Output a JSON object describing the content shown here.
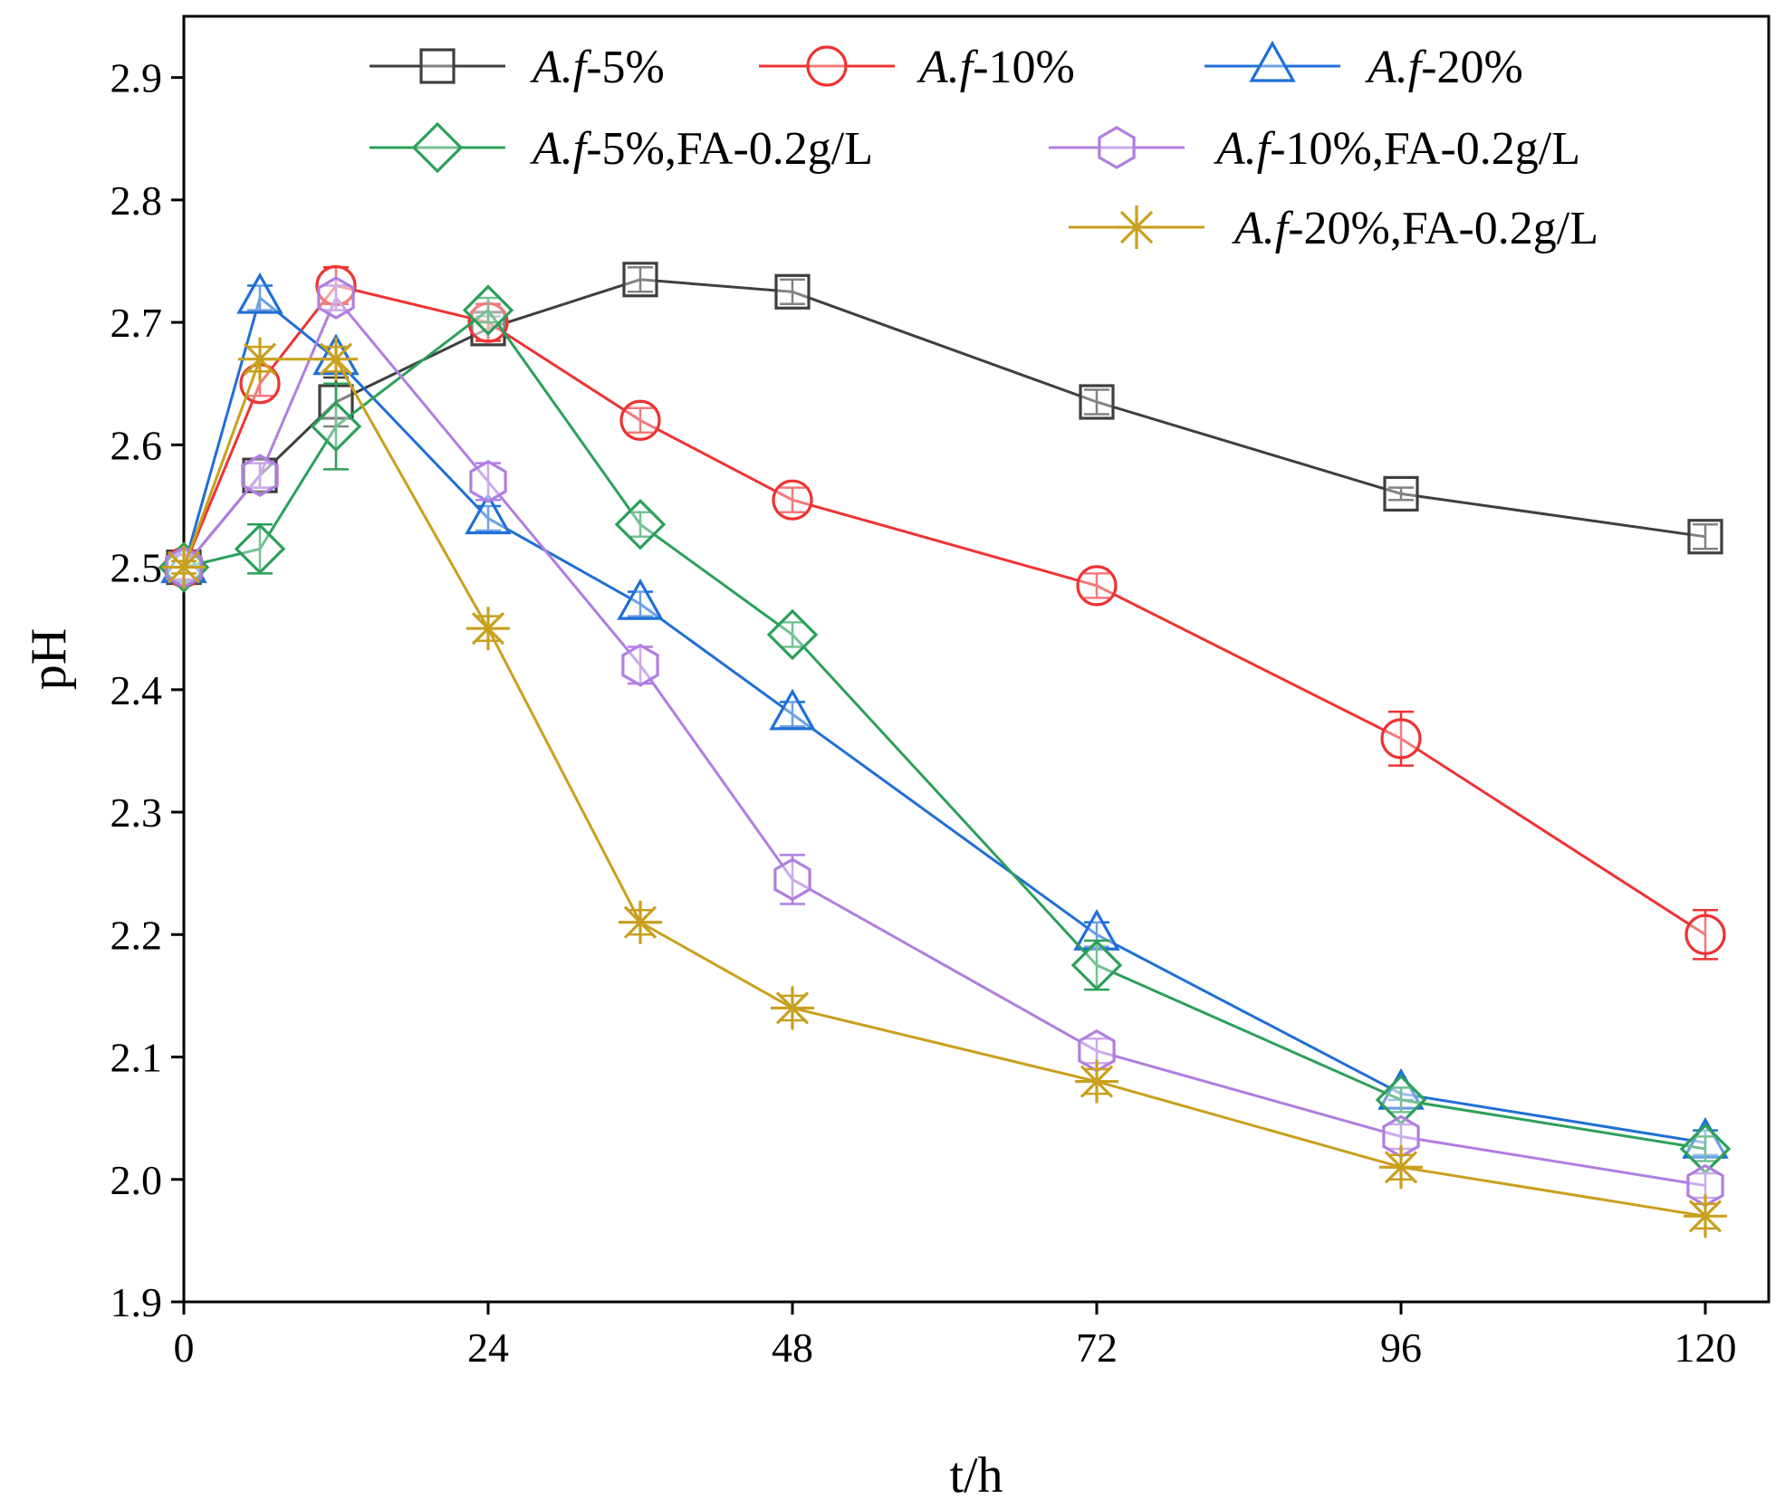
{
  "chart_data": {
    "type": "line",
    "title": "",
    "xlabel": "t/h",
    "ylabel": "pH",
    "xlim": [
      0,
      125
    ],
    "ylim": [
      1.9,
      2.95
    ],
    "xticks": [
      0,
      24,
      48,
      72,
      96,
      120
    ],
    "xtick_labels": [
      "0",
      "24",
      "48",
      "72",
      "96",
      "120"
    ],
    "yticks": [
      1.9,
      2.0,
      2.1,
      2.2,
      2.3,
      2.4,
      2.5,
      2.6,
      2.7,
      2.8,
      2.9
    ],
    "ytick_labels": [
      "1.9",
      "2.0",
      "2.1",
      "2.2",
      "2.3",
      "2.4",
      "2.5",
      "2.6",
      "2.7",
      "2.8",
      "2.9"
    ],
    "grid": false,
    "legend_position": "top",
    "series": [
      {
        "name": "A.f-5%",
        "name_italic": "A.f",
        "name_rest": "-5%",
        "color": "#3f3f3f",
        "marker": "square",
        "x": [
          0,
          6,
          12,
          24,
          36,
          48,
          72,
          96,
          120
        ],
        "y": [
          2.5,
          2.575,
          2.635,
          2.695,
          2.735,
          2.725,
          2.635,
          2.56,
          2.525
        ],
        "err": [
          0.01,
          0.01,
          0.02,
          0.01,
          0.01,
          0.01,
          0.01,
          0.005,
          0.01
        ]
      },
      {
        "name": "A.f-10%",
        "name_italic": "A.f",
        "name_rest": "-10%",
        "color": "#ee3333",
        "marker": "circle",
        "x": [
          0,
          6,
          12,
          24,
          36,
          48,
          72,
          96,
          120
        ],
        "y": [
          2.5,
          2.65,
          2.73,
          2.7,
          2.62,
          2.555,
          2.485,
          2.36,
          2.2
        ],
        "err": [
          0.01,
          0.01,
          0.015,
          0.015,
          0.01,
          0.01,
          0.01,
          0.022,
          0.02
        ]
      },
      {
        "name": "A.f-20%",
        "name_italic": "A.f",
        "name_rest": "-20%",
        "color": "#1f6fd6",
        "marker": "triangle",
        "x": [
          0,
          6,
          12,
          24,
          36,
          48,
          72,
          96,
          120
        ],
        "y": [
          2.5,
          2.72,
          2.67,
          2.54,
          2.47,
          2.38,
          2.2,
          2.07,
          2.03
        ],
        "err": [
          0.01,
          0.01,
          0.01,
          0.01,
          0.01,
          0.01,
          0.01,
          0.005,
          0.01
        ]
      },
      {
        "name": "A.f-5%,FA-0.2g/L",
        "name_italic": "A.f",
        "name_rest": "-5%,FA-0.2g/L",
        "color": "#2ca05a",
        "marker": "diamond",
        "x": [
          0,
          6,
          12,
          24,
          36,
          48,
          72,
          96,
          120
        ],
        "y": [
          2.5,
          2.515,
          2.615,
          2.71,
          2.535,
          2.445,
          2.175,
          2.065,
          2.025
        ],
        "err": [
          0.01,
          0.02,
          0.035,
          0.01,
          0.01,
          0.01,
          0.02,
          0.01,
          0.01
        ]
      },
      {
        "name": "A.f-10%,FA-0.2g/L",
        "name_italic": "A.f",
        "name_rest": "-10%,FA-0.2g/L",
        "color": "#b07ee0",
        "marker": "hexagon",
        "x": [
          0,
          6,
          12,
          24,
          36,
          48,
          72,
          96,
          120
        ],
        "y": [
          2.5,
          2.575,
          2.72,
          2.57,
          2.42,
          2.245,
          2.105,
          2.035,
          1.995
        ],
        "err": [
          0.01,
          0.01,
          0.01,
          0.015,
          0.015,
          0.02,
          0.01,
          0.01,
          0.01
        ]
      },
      {
        "name": "A.f-20%,FA-0.2g/L",
        "name_italic": "A.f",
        "name_rest": "-20%,FA-0.2g/L",
        "color": "#c9a01e",
        "marker": "asterisk",
        "x": [
          0,
          6,
          12,
          24,
          36,
          48,
          72,
          96,
          120
        ],
        "y": [
          2.5,
          2.67,
          2.67,
          2.45,
          2.21,
          2.14,
          2.08,
          2.01,
          1.97
        ],
        "err": [
          0.005,
          0.01,
          0.01,
          0.01,
          0.01,
          0.01,
          0.01,
          0.01,
          0.01
        ]
      }
    ]
  }
}
